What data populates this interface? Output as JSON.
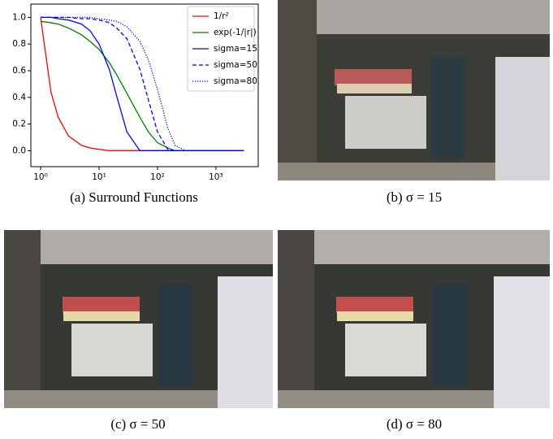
{
  "chart_data": {
    "type": "line",
    "log_x": true,
    "legend": "upper right",
    "x": [
      1,
      1.5,
      2,
      3,
      5,
      7,
      10,
      15,
      20,
      30,
      50,
      70,
      100,
      150,
      200,
      300,
      1000,
      3000
    ],
    "series": [
      {
        "name": "1/r²",
        "color": "#ff0000",
        "style": "solid",
        "values": [
          1,
          0.44,
          0.25,
          0.11,
          0.04,
          0.02,
          0.01,
          0,
          0,
          0,
          0,
          0,
          0,
          0,
          0,
          0,
          0,
          0
        ]
      },
      {
        "name": "exp(-1/|r|)",
        "color": "#008000",
        "style": "solid",
        "values": [
          0.97,
          0.96,
          0.95,
          0.92,
          0.87,
          0.82,
          0.76,
          0.66,
          0.57,
          0.43,
          0.25,
          0.14,
          0.06,
          0.02,
          0,
          0,
          0,
          0
        ]
      },
      {
        "name": "sigma=15",
        "color": "#0000ff",
        "style": "solid",
        "values": [
          1,
          1,
          0.99,
          0.98,
          0.95,
          0.9,
          0.8,
          0.61,
          0.41,
          0.14,
          0,
          0,
          0,
          0,
          0,
          0,
          0,
          0
        ]
      },
      {
        "name": "sigma=50",
        "color": "#0000ff",
        "style": "dashed",
        "values": [
          1,
          1,
          1,
          1,
          0.99,
          0.99,
          0.98,
          0.96,
          0.92,
          0.84,
          0.61,
          0.38,
          0.14,
          0.01,
          0,
          0,
          0,
          0
        ]
      },
      {
        "name": "sigma=80",
        "color": "#0000ff",
        "style": "dotted",
        "values": [
          1,
          1,
          1,
          1,
          1,
          1,
          0.99,
          0.98,
          0.97,
          0.93,
          0.82,
          0.68,
          0.46,
          0.17,
          0.04,
          0,
          0,
          0
        ]
      }
    ],
    "xlim": [
      0.68,
      5300
    ],
    "ylim": [
      -0.12,
      1.1
    ],
    "xticks": [
      {
        "value": 1,
        "label": "10⁰"
      },
      {
        "value": 10,
        "label": "10¹"
      },
      {
        "value": 100,
        "label": "10²"
      },
      {
        "value": 1000,
        "label": "10³"
      }
    ],
    "yticks": [
      {
        "value": 0,
        "label": "0.0"
      },
      0.2,
      0.4,
      0.6,
      0.8,
      {
        "value": 1,
        "label": "1.0"
      }
    ]
  },
  "captions": [
    "(a) Surround Functions",
    "(b) σ = 15",
    "(c) σ = 50",
    "(d) σ = 80"
  ]
}
